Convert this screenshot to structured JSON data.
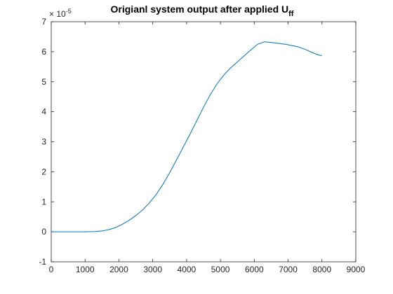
{
  "chart_data": {
    "type": "line",
    "title": "Origianl system output after applied U",
    "title_subscript": "ff",
    "xlabel": "",
    "ylabel": "",
    "xlim": [
      0,
      9000
    ],
    "ylim": [
      -1,
      7
    ],
    "y_exponent_base": "× 10",
    "y_exponent": "-5",
    "x_ticks": [
      0,
      1000,
      2000,
      3000,
      4000,
      5000,
      6000,
      7000,
      8000,
      9000
    ],
    "x_tick_labels": [
      "0",
      "1000",
      "2000",
      "3000",
      "4000",
      "5000",
      "6000",
      "7000",
      "8000",
      "9000"
    ],
    "y_ticks": [
      -1,
      0,
      1,
      2,
      3,
      4,
      5,
      6,
      7
    ],
    "y_tick_labels": [
      "-1",
      "0",
      "1",
      "2",
      "3",
      "4",
      "5",
      "6",
      "7"
    ],
    "grid": false,
    "line_color": "#0072BD",
    "series": [
      {
        "x": [
          0,
          500,
          1000,
          1300,
          1500,
          1700,
          1900,
          2100,
          2300,
          2500,
          2700,
          2900,
          3100,
          3300,
          3500,
          3700,
          3900,
          4100,
          4300,
          4500,
          4700,
          4900,
          5100,
          5300,
          5500,
          5700,
          5900,
          6100,
          6300,
          6500,
          6700,
          6900,
          7100,
          7300,
          7500,
          7700,
          7900,
          8000
        ],
        "y": [
          0.0,
          0.0,
          0.0,
          0.01,
          0.03,
          0.07,
          0.14,
          0.25,
          0.38,
          0.54,
          0.73,
          0.96,
          1.24,
          1.58,
          1.97,
          2.39,
          2.82,
          3.25,
          3.7,
          4.15,
          4.57,
          4.93,
          5.22,
          5.46,
          5.66,
          5.86,
          6.06,
          6.25,
          6.33,
          6.31,
          6.28,
          6.25,
          6.21,
          6.16,
          6.08,
          5.98,
          5.89,
          5.87
        ]
      }
    ]
  }
}
